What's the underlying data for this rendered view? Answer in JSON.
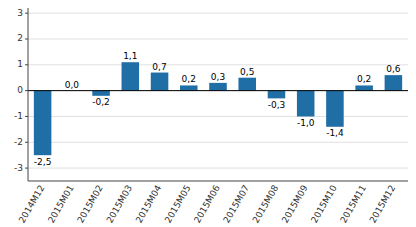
{
  "chart_data": {
    "type": "bar",
    "categories": [
      "2014M12",
      "2015M01",
      "2015M02",
      "2015M03",
      "2015M04",
      "2015M05",
      "2015M06",
      "2015M07",
      "2015M08",
      "2015M09",
      "2015M10",
      "2015M11",
      "2015M12"
    ],
    "values": [
      -2.5,
      0.0,
      -0.2,
      1.1,
      0.7,
      0.2,
      0.3,
      0.5,
      -0.3,
      -1.0,
      -1.4,
      0.2,
      0.6
    ],
    "value_labels": [
      "-2,5",
      "0,0",
      "-0,2",
      "1,1",
      "0,7",
      "0,2",
      "0,3",
      "0,5",
      "-0,3",
      "-1,0",
      "-1,4",
      "0,2",
      "0,6"
    ],
    "data_labels": true,
    "color": "#1f6ea6",
    "ylim": [
      -3.5,
      3.2
    ],
    "yticks": [
      -3,
      -2,
      -1,
      0,
      1,
      2,
      3
    ],
    "grid": true
  }
}
